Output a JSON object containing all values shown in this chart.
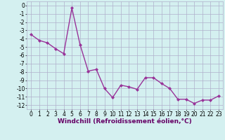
{
  "x": [
    0,
    1,
    2,
    3,
    4,
    5,
    6,
    7,
    8,
    9,
    10,
    11,
    12,
    13,
    14,
    15,
    16,
    17,
    18,
    19,
    20,
    21,
    22,
    23
  ],
  "y": [
    -3.5,
    -4.2,
    -4.5,
    -5.2,
    -5.8,
    -0.3,
    -4.7,
    -7.9,
    -7.7,
    -10.0,
    -11.1,
    -9.6,
    -9.8,
    -10.1,
    -8.7,
    -8.7,
    -9.4,
    -10.0,
    -11.3,
    -11.3,
    -11.8,
    -11.4,
    -11.4,
    -10.9
  ],
  "line_color": "#993399",
  "marker": "D",
  "marker_size": 2,
  "bg_color": "#d4f0f0",
  "grid_color": "#b0b0cc",
  "xlabel": "Windchill (Refroidissement éolien,°C)",
  "xlim": [
    -0.5,
    23.5
  ],
  "ylim": [
    -12.5,
    0.5
  ],
  "yticks": [
    0,
    -1,
    -2,
    -3,
    -4,
    -5,
    -6,
    -7,
    -8,
    -9,
    -10,
    -11,
    -12
  ],
  "xticks": [
    0,
    1,
    2,
    3,
    4,
    5,
    6,
    7,
    8,
    9,
    10,
    11,
    12,
    13,
    14,
    15,
    16,
    17,
    18,
    19,
    20,
    21,
    22,
    23
  ],
  "tick_fontsize": 5.5,
  "label_fontsize": 6.5,
  "linewidth": 1.0
}
